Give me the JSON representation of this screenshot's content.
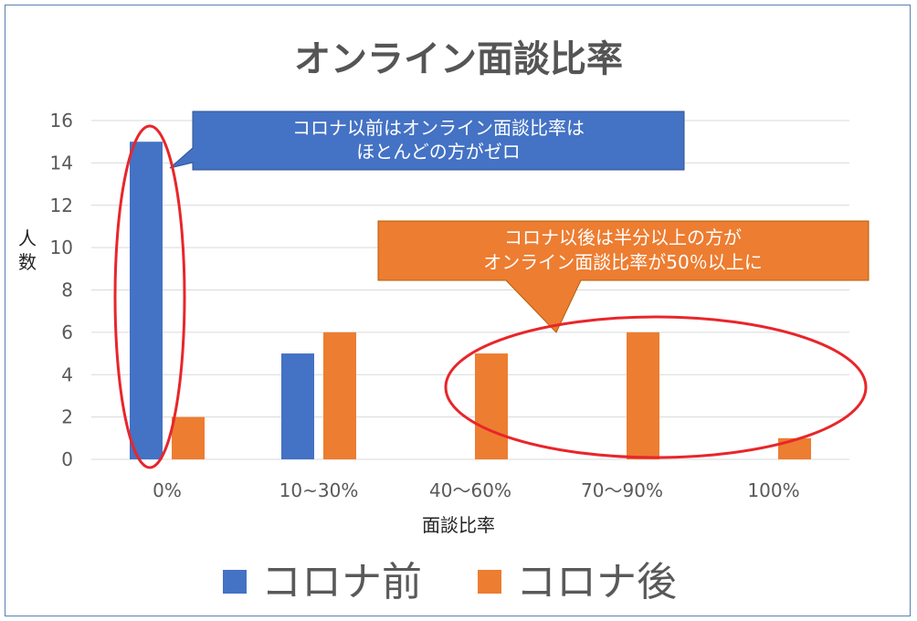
{
  "chart_data": {
    "type": "bar",
    "title": "オンライン面談比率",
    "xlabel": "面談比率",
    "ylabel": "人数",
    "ylim": [
      0,
      16
    ],
    "yticks": [
      0,
      2,
      4,
      6,
      8,
      10,
      12,
      14,
      16
    ],
    "categories": [
      "0%",
      "10~30%",
      "40～60%",
      "70～90%",
      "100%"
    ],
    "series": [
      {
        "name": "コロナ前",
        "color": "#4472C4",
        "values": [
          15,
          5,
          0,
          0,
          0
        ]
      },
      {
        "name": "コロナ後",
        "color": "#ED7D31",
        "values": [
          2,
          6,
          5,
          6,
          1
        ]
      }
    ],
    "grid": true,
    "legend_position": "bottom",
    "annotations": [
      {
        "id": "before",
        "color": "#4472C4",
        "lines": [
          "コロナ以前はオンライン面談比率は",
          "ほとんどの方がゼロ"
        ]
      },
      {
        "id": "after",
        "color": "#ED7D31",
        "lines": [
          "コロナ以後は半分以上の方が",
          "オンライン面談比率が50％以上に"
        ]
      }
    ],
    "highlight_color": "#E8262A"
  }
}
